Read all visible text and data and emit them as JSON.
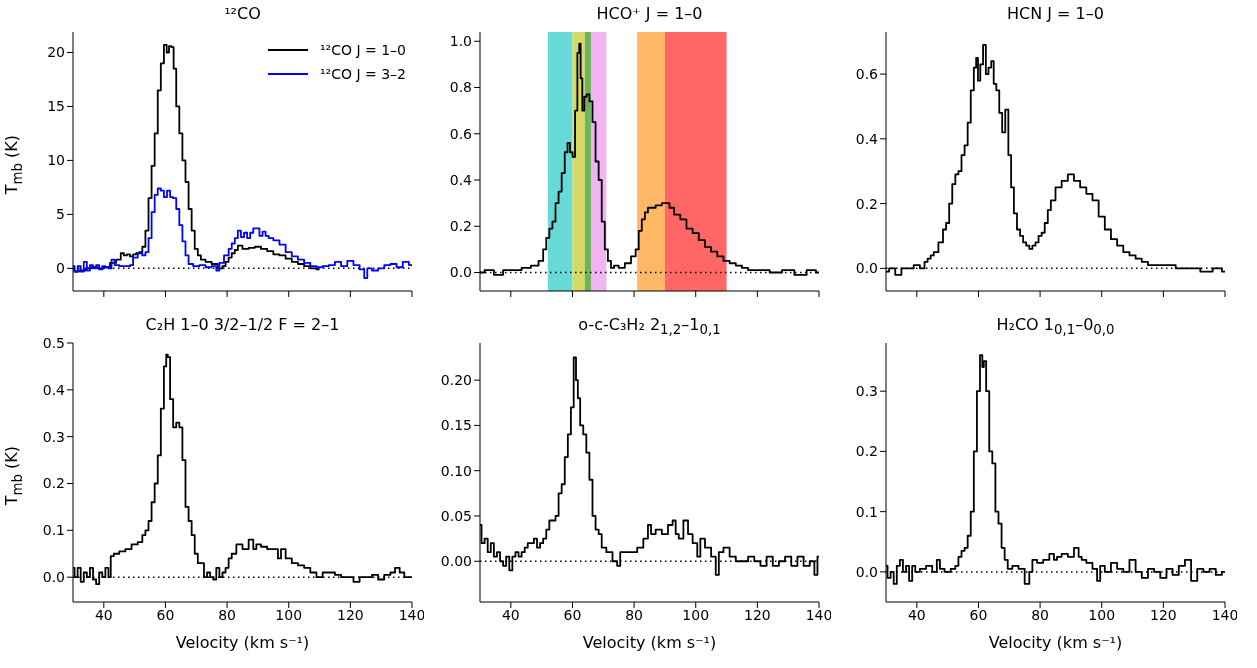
{
  "chart_data": [
    {
      "type": "step",
      "title": "¹²CO",
      "ylabel": "T$_{mb}$ (K)",
      "xlim": [
        30,
        140
      ],
      "xticks": [
        40,
        60,
        80,
        100,
        120,
        140
      ],
      "ylim": [
        -2.1,
        21.9
      ],
      "yticks": [
        0,
        5,
        10,
        15,
        20
      ],
      "tick_labels": "y",
      "legend": "top right",
      "ref_lines": [
        {
          "axis": "y",
          "value": 0,
          "color": "#000000",
          "line_style": "dotted"
        }
      ],
      "series": [
        {
          "name": "¹²CO J = 1–0",
          "color": "#000000",
          "x": [
            30,
            31,
            33,
            35,
            37,
            39,
            41,
            43,
            45,
            46,
            47,
            48,
            49,
            50,
            51,
            52,
            53,
            54,
            55,
            56,
            57,
            58,
            59,
            60,
            60.8,
            61.5,
            62.3,
            63,
            64,
            65,
            66,
            67,
            68,
            69,
            70,
            71,
            72,
            74,
            76,
            78,
            79,
            80,
            81,
            82,
            83,
            84,
            86,
            88,
            90,
            92,
            94,
            96,
            98,
            100,
            102,
            104,
            106,
            108,
            110
          ],
          "values": [
            -0.1,
            -0.3,
            -0.2,
            0,
            0.1,
            0,
            0.1,
            0.5,
            0.8,
            1.4,
            1.2,
            1.3,
            1.1,
            1.3,
            1.4,
            1.5,
            2,
            3.5,
            6.5,
            9.5,
            12.5,
            16.5,
            19,
            20.7,
            20,
            20.6,
            20.5,
            18.5,
            15,
            12.5,
            10,
            8,
            5.5,
            3.5,
            1.8,
            1.2,
            0.8,
            0.6,
            0.4,
            0,
            0.2,
            0.6,
            1,
            1.4,
            1.7,
            2.1,
            1.8,
            1.9,
            2,
            1.8,
            1.6,
            1.3,
            1.2,
            0.9,
            0.6,
            0.4,
            0.2,
            0,
            -0.1
          ]
        },
        {
          "name": "¹²CO J = 3–2",
          "color": "#0000ff",
          "x": [
            30,
            31,
            32,
            33,
            34,
            35,
            36,
            37,
            38,
            39,
            40,
            41,
            42,
            43,
            44,
            46,
            48,
            49,
            50,
            52,
            53,
            54,
            55,
            56,
            57,
            58,
            59,
            60,
            61,
            62,
            63,
            64,
            65,
            66,
            67,
            68,
            70,
            72,
            74,
            76,
            77,
            78,
            80,
            81,
            82,
            83,
            84,
            85,
            86,
            87,
            88,
            89,
            90,
            91,
            92,
            93,
            94,
            96,
            98,
            100,
            102,
            104,
            106,
            108,
            110,
            112,
            114,
            116,
            118,
            120,
            122,
            124,
            125,
            126,
            128,
            130,
            132,
            134,
            136,
            138,
            140
          ],
          "values": [
            0.2,
            -0.3,
            0.2,
            -0.3,
            0.6,
            -0.2,
            0.3,
            0,
            0.3,
            -0.1,
            0.2,
            0.1,
            0,
            0.8,
            0.3,
            0.2,
            0.2,
            0.3,
            1,
            1.4,
            1.2,
            1.5,
            2.8,
            5.2,
            6.8,
            7.4,
            7.2,
            6.6,
            7.2,
            6.6,
            6.5,
            5.5,
            4,
            2.5,
            1.2,
            0.4,
            0.2,
            0.3,
            0.1,
            0.2,
            -0.2,
            0.5,
            1.2,
            1.8,
            2.3,
            2.8,
            3.5,
            2.9,
            3.3,
            2.8,
            3.3,
            3.7,
            3.7,
            3,
            3.4,
            3,
            2.8,
            2.6,
            2.2,
            1.5,
            1.1,
            0.8,
            0.5,
            0.2,
            0.1,
            0.2,
            0.3,
            0.6,
            0.2,
            0.7,
            0.3,
            -0.1,
            -0.9,
            0,
            -0.2,
            0,
            0.3,
            0.4,
            0.1,
            0.6,
            0.3
          ]
        }
      ]
    },
    {
      "type": "step",
      "title": "HCO⁺ J = 1–0",
      "xlim": [
        30,
        140
      ],
      "xticks": [
        40,
        60,
        80,
        100,
        120,
        140
      ],
      "ylim": [
        -0.08,
        1.04
      ],
      "yticks": [
        {
          "value": 0,
          "label": "0.0"
        },
        0.2,
        0.4,
        0.6,
        0.8,
        {
          "value": 1,
          "label": "1.0"
        }
      ],
      "tick_labels": "y",
      "ref_lines": [
        {
          "axis": "y",
          "value": 0,
          "color": "#000000",
          "line_style": "dotted"
        }
      ],
      "bands": [
        {
          "axis": "x",
          "from": 52,
          "to": 60,
          "color": "#66d9d9"
        },
        {
          "axis": "x",
          "from": 60,
          "to": 64,
          "color": "#d6d966"
        },
        {
          "axis": "x",
          "from": 64,
          "to": 66,
          "color": "#6fb35a"
        },
        {
          "axis": "x",
          "from": 66,
          "to": 71,
          "color": "#f2b3f2"
        },
        {
          "axis": "x",
          "from": 81,
          "to": 90,
          "color": "#ffb866"
        },
        {
          "axis": "x",
          "from": 90,
          "to": 110,
          "color": "#ff6666"
        }
      ],
      "series": [
        {
          "color": "#000000",
          "x": [
            30,
            33,
            36,
            39,
            42,
            45,
            48,
            50,
            51,
            52,
            53,
            54,
            55,
            56,
            57,
            58,
            58.8,
            59.6,
            60.5,
            61.2,
            62,
            62.4,
            62.9,
            63.5,
            64.2,
            65,
            66,
            67,
            68,
            69,
            70,
            71,
            72,
            73,
            74,
            76,
            78,
            80,
            81,
            82,
            83,
            84,
            85,
            86,
            88,
            90,
            91,
            92,
            94,
            96,
            98,
            100,
            102,
            104,
            106,
            108,
            110,
            112,
            114,
            116,
            118,
            122,
            126,
            130,
            134,
            138,
            140
          ],
          "values": [
            0,
            0.01,
            -0.01,
            0.01,
            0.01,
            0.02,
            0.03,
            0.05,
            0.1,
            0.15,
            0.19,
            0.22,
            0.3,
            0.35,
            0.43,
            0.52,
            0.56,
            0.52,
            0.5,
            0.7,
            0.95,
            0.99,
            0.84,
            0.7,
            0.76,
            0.77,
            0.74,
            0.65,
            0.48,
            0.4,
            0.22,
            0.1,
            0.05,
            0.02,
            0.03,
            0.02,
            0.04,
            0.07,
            0.1,
            0.18,
            0.23,
            0.26,
            0.28,
            0.28,
            0.29,
            0.3,
            0.3,
            0.28,
            0.25,
            0.23,
            0.19,
            0.17,
            0.14,
            0.11,
            0.09,
            0.07,
            0.05,
            0.04,
            0.03,
            0.02,
            0.01,
            0.01,
            0,
            0.01,
            -0.01,
            0.01,
            0
          ]
        }
      ]
    },
    {
      "type": "step",
      "title": "HCN J = 1–0",
      "xlim": [
        30,
        140
      ],
      "xticks": [
        40,
        60,
        80,
        100,
        120,
        140
      ],
      "ylim": [
        -0.07,
        0.73
      ],
      "yticks": [
        {
          "value": 0,
          "label": "0.0"
        },
        0.2,
        0.4,
        0.6
      ],
      "tick_labels": "y",
      "ref_lines": [
        {
          "axis": "y",
          "value": 0,
          "color": "#000000",
          "line_style": "dotted"
        }
      ],
      "series": [
        {
          "color": "#000000",
          "x": [
            30,
            32,
            34,
            36,
            38,
            40,
            42,
            43,
            44,
            45,
            46,
            48,
            49,
            50,
            51,
            52,
            53,
            54,
            55,
            56,
            57,
            58,
            59,
            59.5,
            60.2,
            61,
            62,
            62.8,
            63.7,
            64.6,
            65.3,
            66.3,
            67.2,
            68.2,
            69.2,
            70.2,
            71,
            72,
            73,
            74,
            75,
            76,
            77,
            78,
            79,
            80,
            81,
            82,
            83,
            84,
            86,
            88,
            90,
            92,
            94,
            96,
            98,
            100,
            102,
            104,
            106,
            108,
            110,
            112,
            114,
            116,
            118,
            122,
            126,
            130,
            134,
            138,
            140
          ],
          "values": [
            -0.01,
            0,
            -0.02,
            0,
            0,
            0.01,
            0,
            0.02,
            0.03,
            0.04,
            0.05,
            0.08,
            0.12,
            0.14,
            0.2,
            0.26,
            0.29,
            0.3,
            0.35,
            0.38,
            0.45,
            0.55,
            0.62,
            0.65,
            0.58,
            0.63,
            0.69,
            0.6,
            0.62,
            0.64,
            0.57,
            0.55,
            0.48,
            0.42,
            0.49,
            0.35,
            0.25,
            0.17,
            0.12,
            0.1,
            0.08,
            0.07,
            0.06,
            0.07,
            0.08,
            0.1,
            0.11,
            0.14,
            0.18,
            0.21,
            0.25,
            0.27,
            0.29,
            0.27,
            0.25,
            0.23,
            0.21,
            0.16,
            0.12,
            0.09,
            0.07,
            0.05,
            0.04,
            0.03,
            0.02,
            0.01,
            0.01,
            0.01,
            0,
            0,
            -0.01,
            0,
            -0.01
          ]
        }
      ]
    },
    {
      "type": "step",
      "title": "C₂H 1–0 3/2–1/2 F = 2–1",
      "xlabel": "Velocity (km s⁻¹)",
      "ylabel": "T$_{mb}$ (K)",
      "xlim": [
        30,
        140
      ],
      "xticks": [
        40,
        60,
        80,
        100,
        120,
        140
      ],
      "ylim": [
        -0.053,
        0.5
      ],
      "yticks": [
        {
          "value": 0,
          "label": "0.0"
        },
        0.1,
        0.2,
        0.3,
        0.4,
        0.5
      ],
      "ref_lines": [
        {
          "axis": "y",
          "value": 0,
          "color": "#000000",
          "line_style": "dotted"
        }
      ],
      "series": [
        {
          "color": "#000000",
          "x": [
            30,
            31,
            32,
            33,
            34,
            35,
            36,
            37,
            38,
            39,
            40,
            41,
            42,
            42.5,
            44,
            46,
            48,
            50,
            52,
            53,
            54,
            55,
            56,
            57,
            58,
            59,
            60,
            60.5,
            61,
            62,
            63,
            64,
            65,
            66,
            67,
            68,
            69,
            70,
            71,
            72,
            73,
            74,
            75,
            76,
            77,
            78,
            79,
            80,
            81,
            82,
            84,
            86,
            88,
            89,
            90,
            92,
            94,
            96,
            97,
            98,
            100,
            102,
            104,
            106,
            108,
            110,
            112,
            114,
            116,
            118,
            120,
            122,
            124,
            126,
            128,
            130,
            132,
            134,
            135,
            137,
            138,
            140
          ],
          "values": [
            0.02,
            0,
            0.02,
            -0.01,
            0.01,
            0,
            0.02,
            -0.005,
            -0.015,
            0.01,
            0,
            0.02,
            0,
            0.045,
            0.05,
            0.055,
            0.06,
            0.07,
            0.075,
            0.09,
            0.1,
            0.12,
            0.16,
            0.2,
            0.26,
            0.36,
            0.45,
            0.475,
            0.47,
            0.38,
            0.32,
            0.33,
            0.32,
            0.25,
            0.15,
            0.12,
            0.09,
            0.05,
            0.03,
            0.03,
            0,
            0.01,
            0,
            -0.005,
            0.02,
            0,
            0.01,
            0.02,
            0.04,
            0.05,
            0.07,
            0.06,
            0.08,
            0.06,
            0.07,
            0.065,
            0.06,
            0.06,
            0.04,
            0.06,
            0.04,
            0.03,
            0.025,
            0.02,
            0.01,
            0,
            0.01,
            0.01,
            0.005,
            0,
            0,
            -0.01,
            0,
            0,
            0.005,
            -0.005,
            0.005,
            0.01,
            0.02,
            0.01,
            0,
            0
          ]
        }
      ]
    },
    {
      "type": "step",
      "title": "o-c-C₃H₂ 2$_{1,2}$–1$_{0,1}$",
      "xlabel": "Velocity (km s⁻¹)",
      "xlim": [
        30,
        140
      ],
      "xticks": [
        40,
        60,
        80,
        100,
        120,
        140
      ],
      "ylim": [
        -0.045,
        0.241
      ],
      "yticks": [
        {
          "value": 0,
          "label": "0.00"
        },
        0.05,
        {
          "value": 0.1,
          "label": "0.10"
        },
        0.15,
        {
          "value": 0.2,
          "label": "0.20"
        }
      ],
      "ref_lines": [
        {
          "axis": "y",
          "value": 0,
          "color": "#000000",
          "line_style": "dotted"
        }
      ],
      "series": [
        {
          "color": "#000000",
          "x": [
            30,
            31,
            32,
            33,
            34,
            35,
            36,
            37,
            38,
            39,
            40,
            41,
            42,
            43,
            44,
            45,
            46,
            47,
            48,
            49,
            50,
            51,
            52,
            53,
            54,
            55,
            56,
            57,
            58,
            59,
            60,
            60.8,
            61.5,
            62,
            63,
            64,
            65,
            66,
            67,
            68,
            69,
            70,
            72,
            74,
            75,
            76,
            78,
            80,
            82,
            84,
            85,
            86,
            88,
            90,
            92,
            93,
            94,
            95,
            97,
            98,
            100,
            101,
            102,
            104,
            106,
            107,
            108,
            110,
            112,
            114,
            116,
            118,
            120,
            122,
            124,
            126,
            128,
            130,
            132,
            134,
            136,
            138,
            139,
            140
          ],
          "values": [
            0.04,
            0.02,
            0.025,
            0.01,
            0.02,
            0.005,
            0.01,
            0,
            -0.005,
            0.005,
            -0.01,
            0.005,
            0.01,
            0.005,
            0.01,
            0.015,
            0.02,
            0.02,
            0.025,
            0.015,
            0.02,
            0.025,
            0.035,
            0.045,
            0.045,
            0.05,
            0.075,
            0.085,
            0.115,
            0.14,
            0.17,
            0.225,
            0.2,
            0.18,
            0.15,
            0.14,
            0.12,
            0.09,
            0.05,
            0.035,
            0.03,
            0.015,
            0.01,
            0,
            -0.005,
            0.01,
            0.01,
            0.01,
            0.015,
            0.025,
            0.04,
            0.03,
            0.035,
            0.03,
            0.04,
            0.045,
            0.03,
            0.025,
            0.045,
            0.03,
            0.02,
            0.005,
            0.025,
            0.015,
            0.005,
            -0.015,
            0.01,
            0.015,
            0.005,
            0,
            0,
            0.005,
            0,
            -0.005,
            0.005,
            -0.005,
            0,
            0.005,
            -0.005,
            0.005,
            -0.005,
            0,
            -0.015,
            0.005
          ]
        }
      ]
    },
    {
      "type": "step",
      "title": "H₂CO 1$_{0,1}$–0$_{0,0}$",
      "xlabel": "Velocity (km s⁻¹)",
      "xlim": [
        30,
        140
      ],
      "xticks": [
        40,
        60,
        80,
        100,
        120,
        140
      ],
      "ylim": [
        -0.05,
        0.38
      ],
      "yticks": [
        {
          "value": 0,
          "label": "0.0"
        },
        0.1,
        0.2,
        0.3
      ],
      "ref_lines": [
        {
          "axis": "y",
          "value": 0,
          "color": "#000000",
          "line_style": "dotted"
        }
      ],
      "series": [
        {
          "color": "#000000",
          "x": [
            30,
            31,
            32,
            33,
            34,
            35,
            36,
            37,
            38,
            39,
            40,
            42,
            44,
            46,
            47,
            48,
            50,
            52,
            53,
            54,
            55,
            56,
            57,
            58,
            59,
            60,
            61,
            61.5,
            62,
            63,
            64,
            65,
            66,
            67,
            68,
            69,
            70,
            72,
            74,
            76,
            77,
            78,
            80,
            82,
            84,
            85,
            86,
            88,
            90,
            92,
            93,
            94,
            96,
            98,
            99,
            100,
            102,
            104,
            106,
            108,
            110,
            112,
            114,
            116,
            118,
            120,
            122,
            124,
            126,
            128,
            130,
            132,
            134,
            136,
            138,
            140
          ],
          "values": [
            0.01,
            -0.01,
            0,
            -0.02,
            0.01,
            0.02,
            0,
            0.01,
            -0.015,
            0.01,
            0,
            0.005,
            0.01,
            0,
            0.02,
            0.005,
            0,
            0.005,
            0.01,
            0.025,
            0.035,
            0.04,
            0.06,
            0.1,
            0.2,
            0.3,
            0.36,
            0.34,
            0.35,
            0.3,
            0.2,
            0.18,
            0.1,
            0.08,
            0.04,
            0.02,
            0.005,
            0.01,
            0.005,
            -0.02,
            0,
            0.02,
            0.015,
            0.02,
            0.03,
            0.02,
            0.025,
            0.03,
            0.025,
            0.04,
            0.025,
            0.02,
            0.015,
            0.005,
            -0.015,
            0.01,
            0,
            0.015,
            0.005,
            0,
            0.02,
            0,
            -0.01,
            0.005,
            0,
            -0.01,
            0.005,
            -0.005,
            0.01,
            0.02,
            -0.015,
            0.005,
            0,
            0.005,
            -0.005,
            0
          ]
        }
      ]
    }
  ]
}
